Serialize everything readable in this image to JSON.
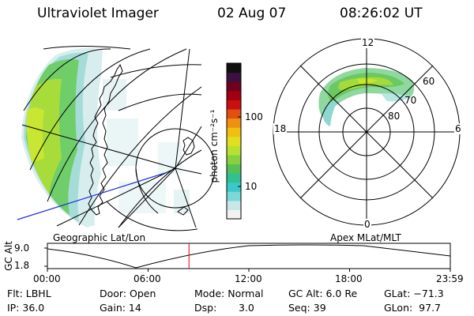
{
  "header": {
    "instrument": "Ultraviolet Imager",
    "date": "02 Aug 07",
    "time": "08:26:02 UT"
  },
  "colorbar": {
    "label": "photon cm⁻²s⁻¹",
    "ticks": [
      "100",
      "10"
    ],
    "colors": [
      "#f2f2f2",
      "#c8e8e8",
      "#7ad8d8",
      "#3cc8c8",
      "#33c090",
      "#55c055",
      "#88d040",
      "#b8e030",
      "#e0e020",
      "#f0c010",
      "#f09010",
      "#e05010",
      "#c81010",
      "#a00010",
      "#700020",
      "#3c1040",
      "#101010"
    ]
  },
  "geo_panel": {
    "caption": "Geographic Lat/Lon"
  },
  "apex_panel": {
    "caption": "Apex MLat/MLT",
    "mlt_labels": {
      "top": "12",
      "bottom": "0",
      "left": "18",
      "right": "6"
    },
    "lat_labels": [
      "60",
      "70",
      "80"
    ]
  },
  "altitude_plot": {
    "ylabel": "GC Alt",
    "yticks": [
      "9.0",
      "1.8"
    ],
    "xticks": [
      "00:00",
      "06:00",
      "12:00",
      "18:00",
      "23:59"
    ],
    "marker_hour": 8.434,
    "marker_color": "#e00000"
  },
  "status": {
    "flt": "Flt: LBHL",
    "ip": "IP: 36.0",
    "door": "Door: Open",
    "gain": "Gain: 14",
    "mode": "Mode: Normal",
    "dsp_label": "Dsp:",
    "dsp_value": "3.0",
    "gc_alt": "GC Alt: 6.0 Re",
    "seq": "Seq: 39",
    "glat": "GLat: −71.3",
    "glon": "GLon:  97.7"
  }
}
